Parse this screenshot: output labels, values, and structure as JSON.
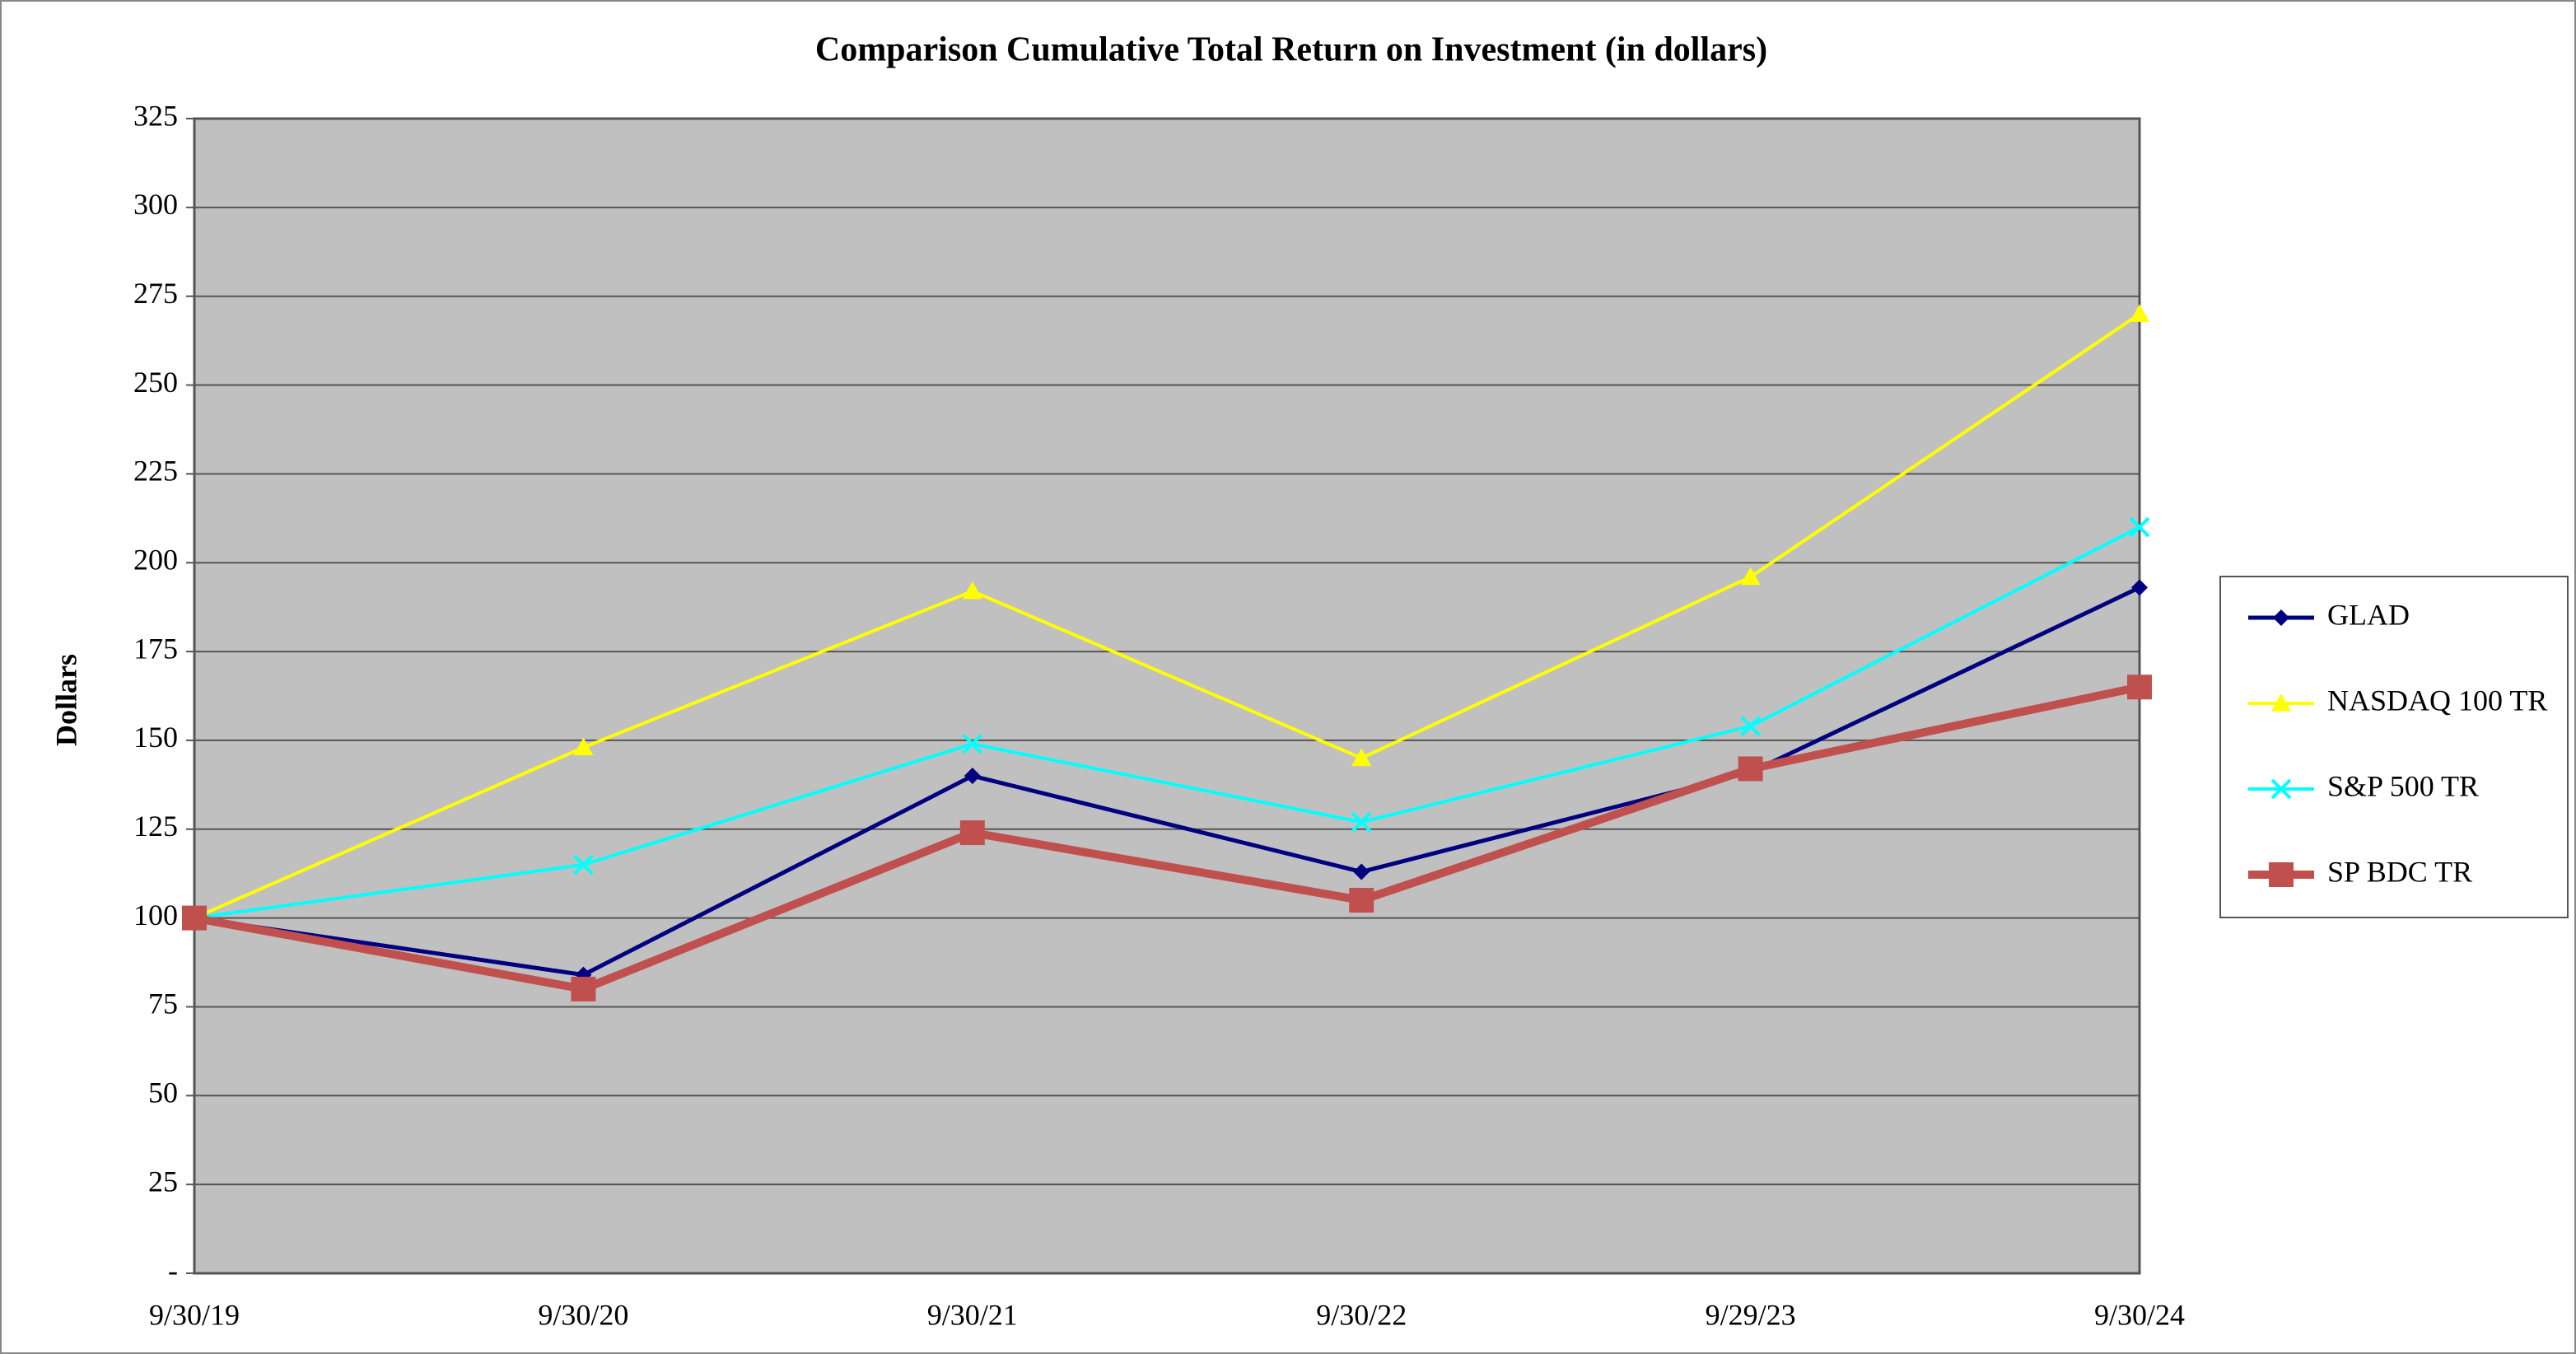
{
  "chart_data": {
    "type": "line",
    "title": "Comparison Cumulative Total Return on Investment (in dollars)",
    "y_label": "Dollars",
    "categories": [
      "9/30/19",
      "9/30/20",
      "9/30/21",
      "9/30/22",
      "9/29/23",
      "9/30/24"
    ],
    "series": [
      {
        "name": "GLAD",
        "color": "#000080",
        "marker": "diamond",
        "values": [
          100,
          84,
          140,
          113,
          141,
          193
        ]
      },
      {
        "name": "NASDAQ 100 TR",
        "color": "#ffff00",
        "marker": "triangle",
        "values": [
          100,
          148,
          192,
          145,
          196,
          270
        ]
      },
      {
        "name": "S&P 500 TR",
        "color": "#00ffff",
        "marker": "x",
        "values": [
          100,
          115,
          149,
          127,
          154,
          210
        ]
      },
      {
        "name": "SP BDC TR",
        "color": "#c0504d",
        "marker": "square",
        "values": [
          100,
          80,
          124,
          105,
          142,
          165
        ]
      }
    ],
    "ylim": [
      0,
      325
    ],
    "yticks": [
      {
        "value": 0,
        "label": "-"
      },
      25,
      50,
      75,
      100,
      125,
      150,
      175,
      200,
      225,
      250,
      275,
      300,
      325
    ],
    "grid": true,
    "plot_background": "#c0c0c0",
    "legend": "right"
  }
}
